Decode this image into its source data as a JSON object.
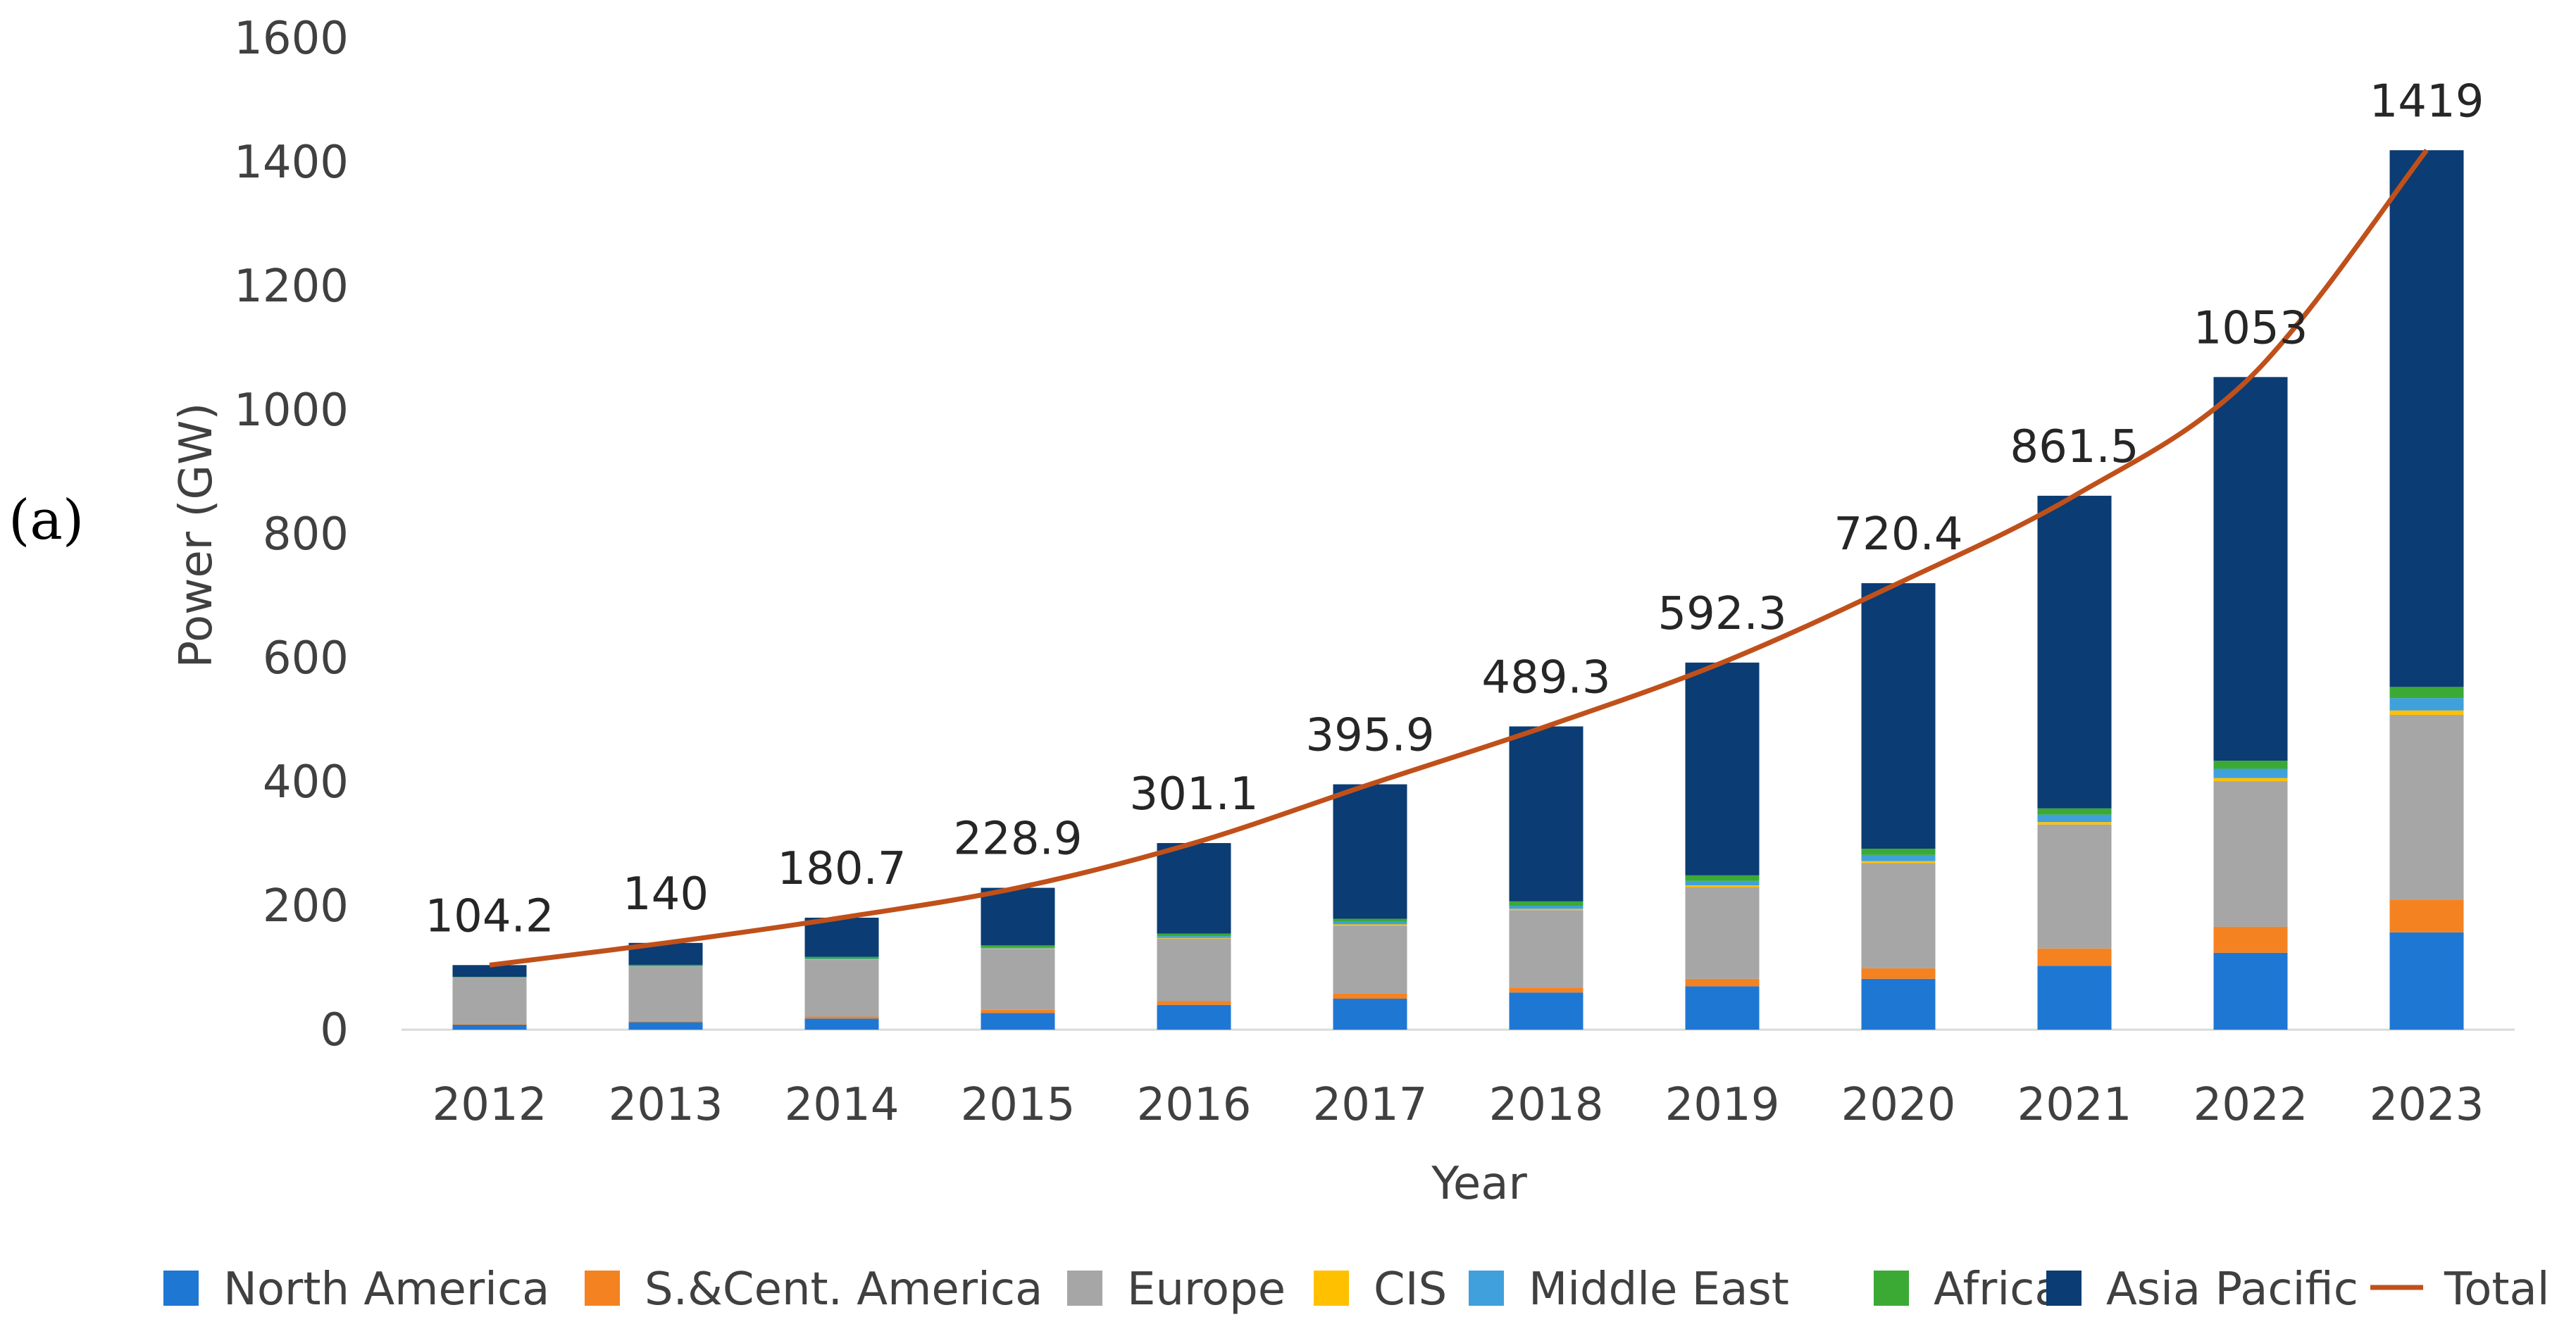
{
  "chart_data": {
    "type": "bar",
    "stacked": true,
    "panel_label": "(a)",
    "title": "",
    "xlabel": "Year",
    "ylabel": "Power (GW)",
    "ylim": [
      0,
      1600
    ],
    "yticks": [
      0,
      200,
      400,
      600,
      800,
      1000,
      1200,
      1400,
      1600
    ],
    "grid": false,
    "legend_position": "bottom",
    "categories": [
      "2012",
      "2013",
      "2014",
      "2015",
      "2016",
      "2017",
      "2018",
      "2019",
      "2020",
      "2021",
      "2022",
      "2023"
    ],
    "series": [
      {
        "name": "North America",
        "color": "#1f77d4",
        "values": [
          8,
          12,
          18,
          27,
          40,
          50,
          60,
          70,
          82,
          103,
          124,
          157
        ]
      },
      {
        "name": "S.&Cent. America",
        "color": "#f58220",
        "values": [
          1,
          2,
          3,
          5,
          6,
          8,
          8,
          12,
          17,
          28,
          42,
          53
        ]
      },
      {
        "name": "Europe",
        "color": "#a6a6a6",
        "values": [
          75,
          88,
          92,
          98,
          101,
          110,
          125,
          148,
          170,
          200,
          235,
          298
        ]
      },
      {
        "name": "CIS",
        "color": "#ffc000",
        "values": [
          0.1,
          0.1,
          0.5,
          1,
          1,
          2,
          2,
          3,
          3,
          4,
          5,
          7
        ]
      },
      {
        "name": "Middle East",
        "color": "#3fa0dc",
        "values": [
          0.2,
          0.5,
          1,
          2,
          3,
          4,
          5,
          7,
          10,
          12,
          15,
          20
        ]
      },
      {
        "name": "Africa",
        "color": "#3aaa35",
        "values": [
          1,
          2,
          3,
          3,
          4,
          5,
          7,
          9,
          10,
          10,
          13,
          18
        ]
      },
      {
        "name": "Asia Pacific",
        "color": "#0b3c73",
        "values": [
          18.9,
          35.4,
          63.2,
          92.9,
          146.1,
          216.9,
          282.3,
          343.3,
          428.4,
          504.5,
          619,
          866
        ]
      }
    ],
    "total": {
      "name": "Total",
      "color": "#c0501a",
      "values": [
        104.2,
        140,
        180.7,
        228.9,
        301.1,
        395.9,
        489.3,
        592.3,
        720.4,
        861.5,
        1053,
        1419
      ]
    },
    "data_labels": [
      "104.2",
      "140",
      "180.7",
      "228.9",
      "301.1",
      "395.9",
      "489.3",
      "592.3",
      "720.4",
      "861.5",
      "1053",
      "1419"
    ]
  }
}
